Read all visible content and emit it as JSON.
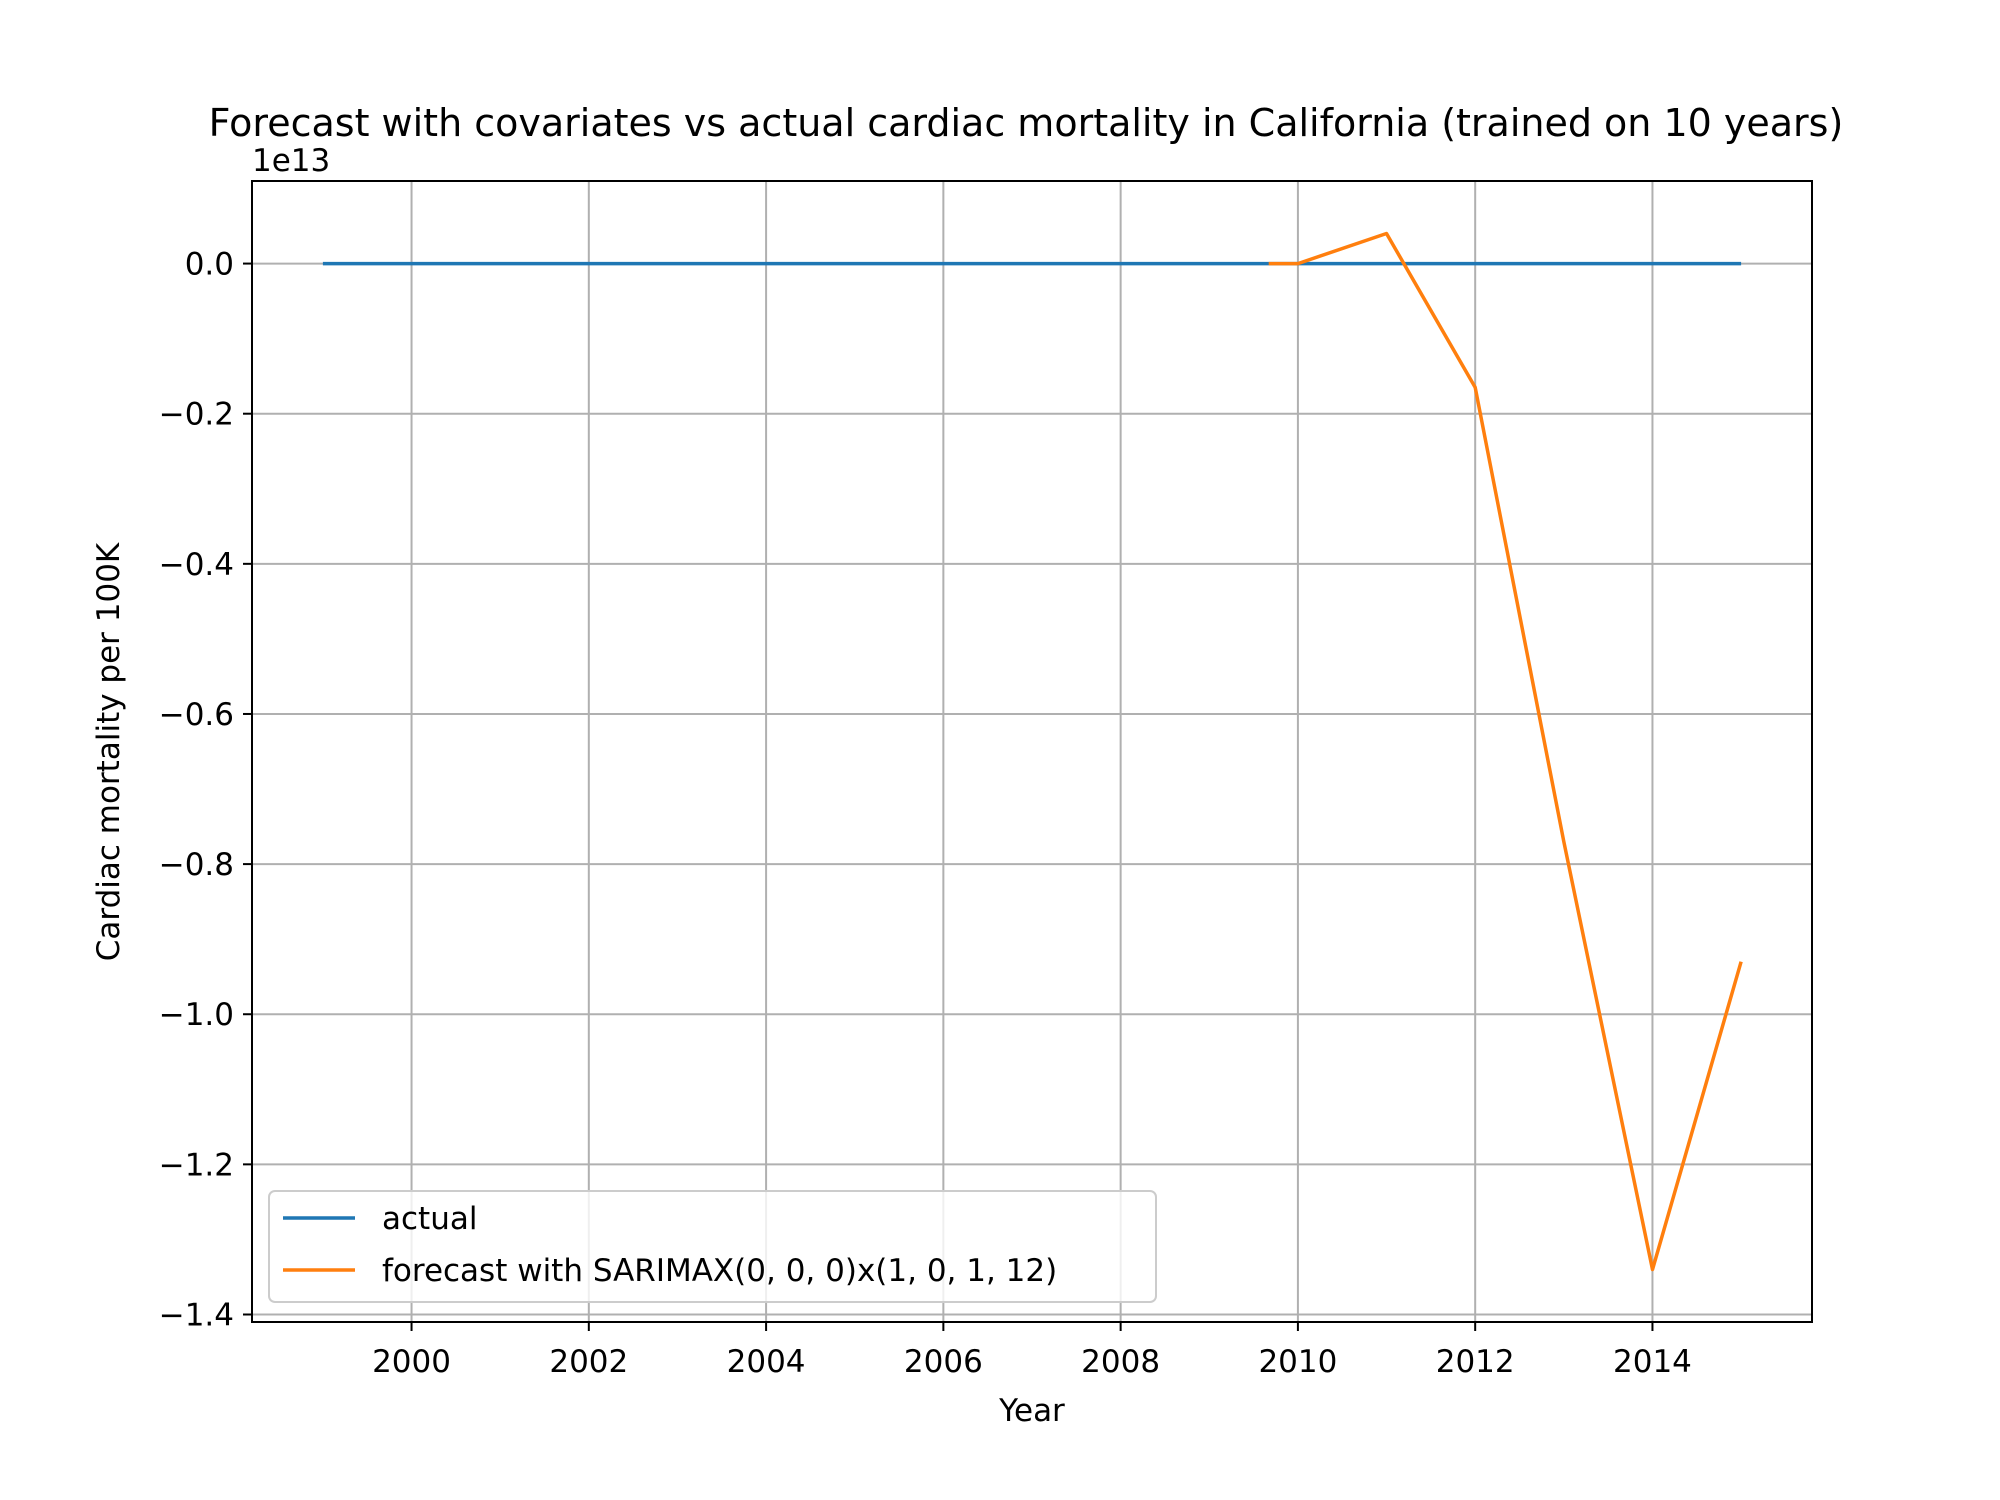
{
  "chart_data": {
    "type": "line",
    "title": "Forecast with covariates vs actual cardiac mortality in California (trained on 10 years)",
    "xlabel": "Year",
    "ylabel": "Cardiac mortality per 100K",
    "y_offset_label": "1e13",
    "xlim": [
      1998.2,
      2015.8
    ],
    "ylim": [
      -1.41,
      0.11
    ],
    "x_ticks": [
      2000,
      2002,
      2004,
      2006,
      2008,
      2010,
      2012,
      2014
    ],
    "x_tick_labels": [
      "2000",
      "2002",
      "2004",
      "2006",
      "2008",
      "2010",
      "2012",
      "2014"
    ],
    "y_ticks": [
      0.0,
      -0.2,
      -0.4,
      -0.6,
      -0.8,
      -1.0,
      -1.2,
      -1.4
    ],
    "y_tick_labels": [
      "0.0",
      "−0.2",
      "−0.4",
      "−0.6",
      "−0.8",
      "−1.0",
      "−1.2",
      "−1.4"
    ],
    "grid": true,
    "legend_position": "lower-left",
    "series": [
      {
        "name": "actual",
        "color": "#1f77b4",
        "x": [
          1999,
          2000,
          2001,
          2002,
          2003,
          2004,
          2005,
          2006,
          2007,
          2008,
          2009,
          2010,
          2011,
          2012,
          2013,
          2014,
          2015
        ],
        "y": [
          0,
          0,
          0,
          0,
          0,
          0,
          0,
          0,
          0,
          0,
          0,
          0,
          0,
          0,
          0,
          0,
          0
        ]
      },
      {
        "name": "forecast with SARIMAX(0, 0, 0)x(1, 0, 1, 12)",
        "color": "#ff7f0e",
        "x": [
          2009.67,
          2010,
          2011,
          2012,
          2013,
          2014,
          2015
        ],
        "y": [
          0.0,
          0.0,
          0.04,
          -0.165,
          -0.77,
          -1.34,
          -0.93
        ]
      }
    ]
  }
}
